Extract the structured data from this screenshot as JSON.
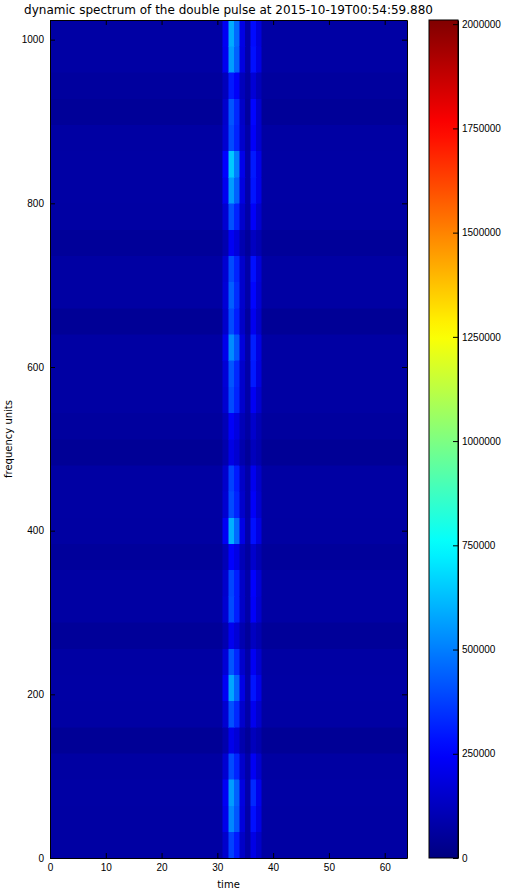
{
  "chart_data": {
    "type": "heatmap",
    "title": "dynamic spectrum of the double pulse at 2015-10-19T00:54:59.880",
    "x_label": "time",
    "y_label": "frequency units",
    "color": "jet",
    "xlim": [
      0,
      64
    ],
    "ylim": [
      0,
      1024
    ],
    "xticks": [
      0,
      10,
      20,
      30,
      40,
      50,
      60
    ],
    "yticks": [
      0,
      200,
      400,
      600,
      800,
      1000
    ],
    "x_edges": [
      0,
      31,
      32,
      33,
      34,
      35,
      36,
      37,
      38,
      64
    ],
    "y_edges": [
      0,
      32,
      64,
      96,
      128,
      160,
      192,
      224,
      256,
      288,
      320,
      352,
      384,
      416,
      448,
      480,
      512,
      544,
      576,
      608,
      640,
      672,
      704,
      736,
      768,
      800,
      832,
      864,
      896,
      928,
      960,
      992,
      1024
    ],
    "cells": [
      [
        70000,
        150000,
        380000,
        300000,
        140000,
        80000,
        200000,
        140000,
        70000
      ],
      [
        70000,
        210000,
        520000,
        420000,
        180000,
        80000,
        280000,
        190000,
        70000
      ],
      [
        72000,
        230000,
        560000,
        440000,
        190000,
        85000,
        330000,
        210000,
        72000
      ],
      [
        68000,
        160000,
        400000,
        320000,
        150000,
        80000,
        230000,
        150000,
        68000
      ],
      [
        45000,
        90000,
        210000,
        170000,
        90000,
        50000,
        120000,
        90000,
        45000
      ],
      [
        70000,
        160000,
        410000,
        330000,
        150000,
        80000,
        220000,
        150000,
        70000
      ],
      [
        72000,
        230000,
        580000,
        450000,
        200000,
        85000,
        290000,
        200000,
        72000
      ],
      [
        70000,
        170000,
        420000,
        330000,
        150000,
        80000,
        230000,
        150000,
        70000
      ],
      [
        50000,
        95000,
        220000,
        170000,
        95000,
        55000,
        130000,
        95000,
        50000
      ],
      [
        70000,
        160000,
        400000,
        310000,
        140000,
        80000,
        240000,
        150000,
        70000
      ],
      [
        70000,
        150000,
        390000,
        310000,
        140000,
        80000,
        250000,
        160000,
        70000
      ],
      [
        55000,
        110000,
        250000,
        200000,
        110000,
        65000,
        150000,
        100000,
        55000
      ],
      [
        68000,
        230000,
        600000,
        460000,
        200000,
        85000,
        280000,
        190000,
        68000
      ],
      [
        70000,
        160000,
        400000,
        320000,
        150000,
        80000,
        240000,
        150000,
        70000
      ],
      [
        70000,
        150000,
        380000,
        300000,
        140000,
        80000,
        220000,
        140000,
        70000
      ],
      [
        45000,
        90000,
        200000,
        160000,
        90000,
        50000,
        120000,
        90000,
        45000
      ],
      [
        60000,
        110000,
        240000,
        190000,
        110000,
        70000,
        150000,
        100000,
        60000
      ],
      [
        70000,
        160000,
        400000,
        320000,
        150000,
        80000,
        230000,
        150000,
        70000
      ],
      [
        70000,
        170000,
        420000,
        330000,
        150000,
        80000,
        300000,
        180000,
        70000
      ],
      [
        70000,
        210000,
        530000,
        420000,
        180000,
        80000,
        310000,
        190000,
        70000
      ],
      [
        45000,
        150000,
        400000,
        310000,
        140000,
        60000,
        220000,
        140000,
        45000
      ],
      [
        70000,
        170000,
        440000,
        340000,
        150000,
        80000,
        260000,
        160000,
        70000
      ],
      [
        70000,
        160000,
        400000,
        320000,
        150000,
        80000,
        280000,
        170000,
        70000
      ],
      [
        50000,
        95000,
        230000,
        180000,
        95000,
        55000,
        130000,
        95000,
        50000
      ],
      [
        70000,
        160000,
        410000,
        320000,
        150000,
        80000,
        240000,
        150000,
        70000
      ],
      [
        72000,
        220000,
        560000,
        440000,
        190000,
        85000,
        290000,
        200000,
        72000
      ],
      [
        72000,
        250000,
        650000,
        500000,
        210000,
        85000,
        300000,
        200000,
        72000
      ],
      [
        70000,
        160000,
        400000,
        320000,
        150000,
        80000,
        240000,
        150000,
        70000
      ],
      [
        48000,
        150000,
        420000,
        330000,
        140000,
        60000,
        260000,
        150000,
        48000
      ],
      [
        60000,
        120000,
        300000,
        240000,
        120000,
        70000,
        170000,
        110000,
        60000
      ],
      [
        72000,
        220000,
        560000,
        440000,
        190000,
        85000,
        280000,
        190000,
        72000
      ],
      [
        72000,
        230000,
        590000,
        460000,
        200000,
        85000,
        270000,
        180000,
        72000
      ]
    ],
    "colorbar": {
      "range": [
        0,
        2010000
      ],
      "ticks": [
        0,
        250000,
        500000,
        750000,
        1000000,
        1250000,
        1500000,
        1750000,
        2000000
      ]
    }
  }
}
